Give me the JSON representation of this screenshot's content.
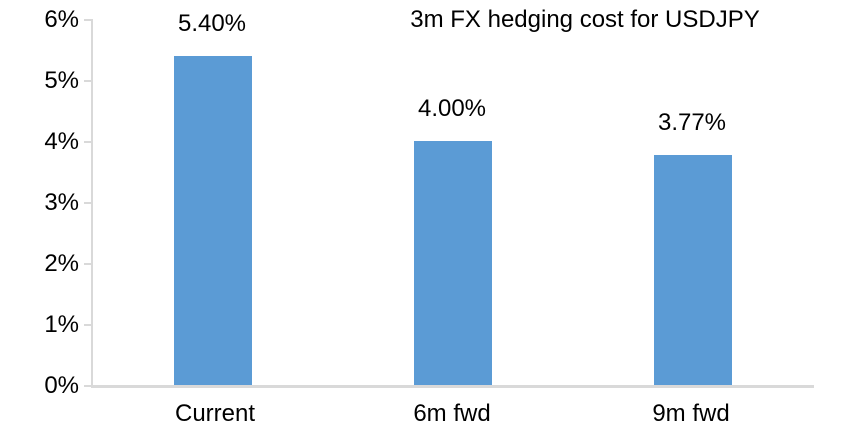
{
  "chart_data": {
    "type": "bar",
    "title": "3m FX hedging cost for USDJPY",
    "categories": [
      "Current",
      "6m fwd",
      "9m fwd"
    ],
    "values": [
      5.4,
      4.0,
      3.77
    ],
    "value_labels": [
      "5.40%",
      "4.00%",
      "3.77%"
    ],
    "y_ticks": [
      "0%",
      "1%",
      "2%",
      "3%",
      "4%",
      "5%",
      "6%"
    ],
    "ylim": [
      0,
      6
    ],
    "xlabel": "",
    "ylabel": "",
    "grid": "off",
    "legend": "none",
    "bar_color": "#5B9BD5",
    "axis_color": "#D9D9D9",
    "text_color": "#000000",
    "background_color": "#FFFFFF"
  }
}
